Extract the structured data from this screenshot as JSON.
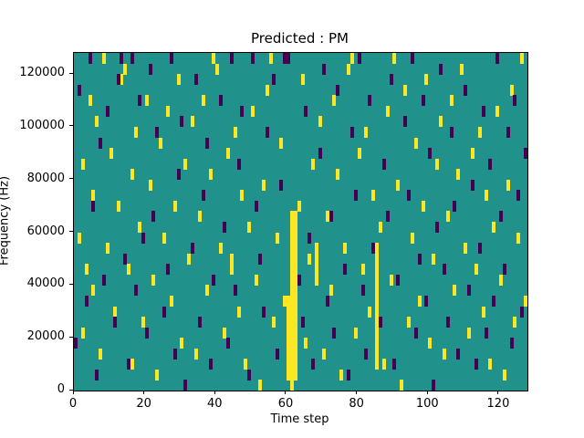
{
  "chart_data": {
    "type": "heatmap",
    "title": "Predicted : PM",
    "xlabel": "Time step",
    "ylabel": "Frequency (Hz)",
    "x_range": [
      0,
      128
    ],
    "y_range": [
      0,
      128000
    ],
    "x_ticks": [
      0,
      20,
      40,
      60,
      80,
      100,
      120
    ],
    "y_ticks": [
      0,
      20000,
      40000,
      60000,
      80000,
      100000,
      120000
    ],
    "grid": {
      "time_steps": 128,
      "freq_bins": 32,
      "bin_hz": 4000
    },
    "legend": "none",
    "colors": {
      "background": "#21918c",
      "high": "#fde725",
      "low": "#440154",
      "axis": "#000000",
      "figure_bg": "#ffffff"
    },
    "cells": {
      "high": [
        [
          1,
          14
        ],
        [
          2,
          5
        ],
        [
          2,
          21
        ],
        [
          3,
          11
        ],
        [
          4,
          27
        ],
        [
          5,
          9
        ],
        [
          5,
          18
        ],
        [
          6,
          25
        ],
        [
          7,
          3
        ],
        [
          8,
          31
        ],
        [
          9,
          13
        ],
        [
          10,
          22
        ],
        [
          11,
          7
        ],
        [
          12,
          17
        ],
        [
          13,
          29
        ],
        [
          14,
          30
        ],
        [
          15,
          11
        ],
        [
          16,
          2
        ],
        [
          16,
          20
        ],
        [
          17,
          24
        ],
        [
          18,
          15
        ],
        [
          19,
          6
        ],
        [
          20,
          27
        ],
        [
          21,
          19
        ],
        [
          22,
          10
        ],
        [
          23,
          1
        ],
        [
          24,
          23
        ],
        [
          25,
          14
        ],
        [
          26,
          26
        ],
        [
          27,
          8
        ],
        [
          28,
          17
        ],
        [
          29,
          29
        ],
        [
          30,
          4
        ],
        [
          31,
          21
        ],
        [
          32,
          12
        ],
        [
          33,
          25
        ],
        [
          34,
          3
        ],
        [
          35,
          16
        ],
        [
          36,
          27
        ],
        [
          37,
          9
        ],
        [
          38,
          20
        ],
        [
          39,
          31
        ],
        [
          40,
          30
        ],
        [
          41,
          13
        ],
        [
          42,
          5
        ],
        [
          43,
          22
        ],
        [
          44,
          11
        ],
        [
          44,
          12
        ],
        [
          45,
          24
        ],
        [
          46,
          7
        ],
        [
          47,
          18
        ],
        [
          48,
          2
        ],
        [
          49,
          15
        ],
        [
          50,
          26
        ],
        [
          51,
          10
        ],
        [
          52,
          0
        ],
        [
          53,
          19
        ],
        [
          54,
          28
        ],
        [
          55,
          31
        ],
        [
          56,
          6
        ],
        [
          57,
          14
        ],
        [
          58,
          23
        ],
        [
          59,
          8
        ],
        [
          60,
          1
        ],
        [
          60,
          2
        ],
        [
          60,
          3
        ],
        [
          60,
          4
        ],
        [
          60,
          5
        ],
        [
          60,
          6
        ],
        [
          60,
          7
        ],
        [
          60,
          8
        ],
        [
          61,
          0
        ],
        [
          61,
          1
        ],
        [
          61,
          2
        ],
        [
          61,
          3
        ],
        [
          61,
          4
        ],
        [
          61,
          5
        ],
        [
          61,
          6
        ],
        [
          61,
          7
        ],
        [
          61,
          8
        ],
        [
          61,
          9
        ],
        [
          61,
          10
        ],
        [
          61,
          11
        ],
        [
          61,
          12
        ],
        [
          61,
          13
        ],
        [
          61,
          14
        ],
        [
          61,
          15
        ],
        [
          61,
          16
        ],
        [
          62,
          1
        ],
        [
          62,
          2
        ],
        [
          62,
          3
        ],
        [
          62,
          4
        ],
        [
          62,
          5
        ],
        [
          62,
          6
        ],
        [
          62,
          7
        ],
        [
          62,
          8
        ],
        [
          62,
          9
        ],
        [
          62,
          10
        ],
        [
          62,
          11
        ],
        [
          62,
          12
        ],
        [
          62,
          13
        ],
        [
          62,
          14
        ],
        [
          62,
          15
        ],
        [
          62,
          16
        ],
        [
          63,
          17
        ],
        [
          64,
          29
        ],
        [
          65,
          4
        ],
        [
          66,
          12
        ],
        [
          67,
          21
        ],
        [
          68,
          10
        ],
        [
          68,
          11
        ],
        [
          68,
          12
        ],
        [
          68,
          13
        ],
        [
          69,
          25
        ],
        [
          70,
          3
        ],
        [
          71,
          16
        ],
        [
          72,
          9
        ],
        [
          73,
          27
        ],
        [
          74,
          20
        ],
        [
          75,
          1
        ],
        [
          76,
          13
        ],
        [
          77,
          30
        ],
        [
          78,
          31
        ],
        [
          79,
          5
        ],
        [
          80,
          22
        ],
        [
          81,
          11
        ],
        [
          82,
          24
        ],
        [
          83,
          7
        ],
        [
          84,
          18
        ],
        [
          85,
          2
        ],
        [
          85,
          3
        ],
        [
          85,
          4
        ],
        [
          85,
          5
        ],
        [
          85,
          6
        ],
        [
          85,
          7
        ],
        [
          85,
          8
        ],
        [
          85,
          9
        ],
        [
          85,
          10
        ],
        [
          85,
          11
        ],
        [
          85,
          12
        ],
        [
          85,
          13
        ],
        [
          86,
          15
        ],
        [
          87,
          2
        ],
        [
          88,
          26
        ],
        [
          89,
          10
        ],
        [
          90,
          31
        ],
        [
          91,
          19
        ],
        [
          92,
          0
        ],
        [
          93,
          28
        ],
        [
          94,
          6
        ],
        [
          95,
          14
        ],
        [
          96,
          23
        ],
        [
          97,
          8
        ],
        [
          98,
          17
        ],
        [
          99,
          29
        ],
        [
          100,
          4
        ],
        [
          101,
          12
        ],
        [
          102,
          21
        ],
        [
          103,
          25
        ],
        [
          104,
          3
        ],
        [
          105,
          16
        ],
        [
          106,
          27
        ],
        [
          107,
          9
        ],
        [
          108,
          20
        ],
        [
          109,
          30
        ],
        [
          110,
          13
        ],
        [
          111,
          5
        ],
        [
          112,
          22
        ],
        [
          113,
          11
        ],
        [
          114,
          24
        ],
        [
          115,
          7
        ],
        [
          116,
          18
        ],
        [
          117,
          2
        ],
        [
          118,
          15
        ],
        [
          119,
          26
        ],
        [
          120,
          10
        ],
        [
          121,
          1
        ],
        [
          122,
          19
        ],
        [
          123,
          28
        ],
        [
          124,
          6
        ],
        [
          125,
          14
        ],
        [
          126,
          31
        ],
        [
          127,
          8
        ]
      ],
      "low": [
        [
          0,
          4
        ],
        [
          1,
          28
        ],
        [
          3,
          8
        ],
        [
          4,
          31
        ],
        [
          5,
          17
        ],
        [
          6,
          1
        ],
        [
          7,
          23
        ],
        [
          8,
          10
        ],
        [
          9,
          26
        ],
        [
          11,
          6
        ],
        [
          12,
          29
        ],
        [
          13,
          31
        ],
        [
          14,
          12
        ],
        [
          15,
          2
        ],
        [
          16,
          31
        ],
        [
          17,
          9
        ],
        [
          18,
          27
        ],
        [
          19,
          14
        ],
        [
          20,
          5
        ],
        [
          21,
          30
        ],
        [
          22,
          16
        ],
        [
          23,
          24
        ],
        [
          25,
          7
        ],
        [
          26,
          11
        ],
        [
          27,
          31
        ],
        [
          28,
          3
        ],
        [
          29,
          20
        ],
        [
          30,
          25
        ],
        [
          31,
          0
        ],
        [
          33,
          13
        ],
        [
          34,
          29
        ],
        [
          35,
          6
        ],
        [
          36,
          18
        ],
        [
          37,
          23
        ],
        [
          38,
          2
        ],
        [
          39,
          10
        ],
        [
          41,
          27
        ],
        [
          42,
          15
        ],
        [
          43,
          4
        ],
        [
          44,
          31
        ],
        [
          45,
          9
        ],
        [
          46,
          21
        ],
        [
          47,
          26
        ],
        [
          49,
          1
        ],
        [
          50,
          31
        ],
        [
          51,
          17
        ],
        [
          52,
          12
        ],
        [
          53,
          7
        ],
        [
          54,
          24
        ],
        [
          56,
          29
        ],
        [
          57,
          3
        ],
        [
          58,
          19
        ],
        [
          59,
          31
        ],
        [
          60,
          31
        ],
        [
          63,
          10
        ],
        [
          64,
          6
        ],
        [
          65,
          26
        ],
        [
          66,
          14
        ],
        [
          67,
          2
        ],
        [
          69,
          22
        ],
        [
          70,
          30
        ],
        [
          71,
          8
        ],
        [
          72,
          16
        ],
        [
          73,
          5
        ],
        [
          74,
          28
        ],
        [
          76,
          11
        ],
        [
          77,
          1
        ],
        [
          78,
          24
        ],
        [
          79,
          18
        ],
        [
          80,
          31
        ],
        [
          81,
          9
        ],
        [
          82,
          3
        ],
        [
          83,
          27
        ],
        [
          84,
          13
        ],
        [
          86,
          6
        ],
        [
          87,
          21
        ],
        [
          88,
          16
        ],
        [
          89,
          29
        ],
        [
          90,
          2
        ],
        [
          91,
          10
        ],
        [
          93,
          25
        ],
        [
          94,
          18
        ],
        [
          95,
          31
        ],
        [
          96,
          5
        ],
        [
          97,
          12
        ],
        [
          98,
          27
        ],
        [
          99,
          8
        ],
        [
          100,
          22
        ],
        [
          101,
          0
        ],
        [
          102,
          15
        ],
        [
          103,
          30
        ],
        [
          104,
          11
        ],
        [
          105,
          6
        ],
        [
          106,
          24
        ],
        [
          107,
          17
        ],
        [
          108,
          3
        ],
        [
          110,
          28
        ],
        [
          111,
          9
        ],
        [
          112,
          19
        ],
        [
          113,
          2
        ],
        [
          114,
          13
        ],
        [
          115,
          26
        ],
        [
          116,
          5
        ],
        [
          117,
          21
        ],
        [
          118,
          8
        ],
        [
          119,
          31
        ],
        [
          120,
          16
        ],
        [
          121,
          11
        ],
        [
          122,
          24
        ],
        [
          123,
          4
        ],
        [
          124,
          27
        ],
        [
          125,
          18
        ],
        [
          126,
          7
        ],
        [
          127,
          22
        ]
      ]
    }
  }
}
